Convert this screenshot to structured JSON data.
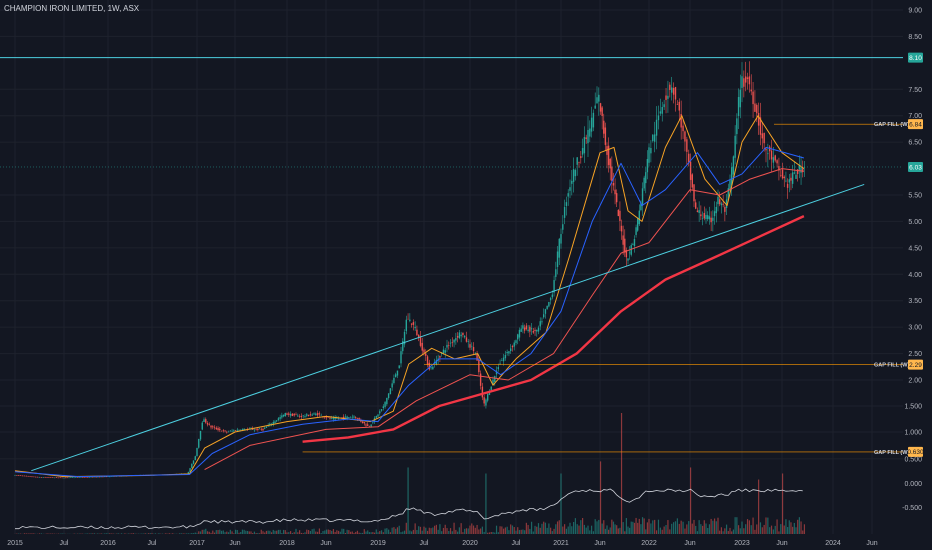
{
  "header": {
    "symbol_title": "CHAMPION IRON LIMITED, 1W, ASX"
  },
  "colors": {
    "background": "#131722",
    "grid": "#1e222d",
    "candle_up": "#26a69a",
    "candle_down": "#ef5350",
    "ma_fast": "#f7a325",
    "ma_mid": "#2962ff",
    "ma_slow_thin": "#ef5350",
    "ma_slow_thick": "#f23645",
    "trendline": "#4dd0e1",
    "gap_line": "#ff9800",
    "price_badge": "#26a69a",
    "gap_badge": "#ffb74d",
    "volume_line": "#d1d4dc"
  },
  "chart_data": {
    "type": "candlestick",
    "title": "CHAMPION IRON LIMITED, 1W, ASX",
    "x_ticks": [
      "2015",
      "Jul",
      "2016",
      "Jul",
      "2017",
      "Jun",
      "2018",
      "Jun",
      "2019",
      "Jul",
      "2020",
      "Jul",
      "2021",
      "Jun",
      "2022",
      "Jun",
      "2023",
      "Jun",
      "2024",
      "Jun"
    ],
    "x_tick_dates": [
      "2015-01",
      "2015-07",
      "2016-01",
      "2016-07",
      "2017-01",
      "2017-06",
      "2018-01",
      "2018-06",
      "2019-01",
      "2019-07",
      "2020-01",
      "2020-07",
      "2021-01",
      "2021-06",
      "2022-01",
      "2022-06",
      "2023-01",
      "2023-06",
      "2024-01",
      "2024-06"
    ],
    "y_ticks": [
      "9.00",
      "8.50",
      "7.50",
      "7.00",
      "6.50",
      "5.50",
      "5.00",
      "4.50",
      "4.00",
      "3.50",
      "3.00",
      "2.50",
      "2.00",
      "1.500",
      "1.000",
      "0.500"
    ],
    "y_tick_values": [
      9.0,
      8.5,
      7.5,
      7.0,
      6.5,
      5.5,
      5.0,
      4.5,
      4.0,
      3.5,
      3.0,
      2.5,
      2.0,
      1.5,
      1.0,
      0.5
    ],
    "y_axis_anchor_values": [
      0.2,
      1.0,
      2.0,
      9.0
    ],
    "x_domain": [
      "2015-01",
      "2024-09"
    ],
    "price_path": [
      [
        "2015-01",
        0.2
      ],
      [
        "2015-04",
        0.16
      ],
      [
        "2015-07",
        0.15
      ],
      [
        "2015-10",
        0.16
      ],
      [
        "2016-01",
        0.17
      ],
      [
        "2016-04",
        0.19
      ],
      [
        "2016-07",
        0.2
      ],
      [
        "2016-10",
        0.21
      ],
      [
        "2016-12",
        0.23
      ],
      [
        "2017-01",
        0.55
      ],
      [
        "2017-02",
        1.25
      ],
      [
        "2017-03",
        1.1
      ],
      [
        "2017-05",
        1.0
      ],
      [
        "2017-07",
        1.05
      ],
      [
        "2017-10",
        1.05
      ],
      [
        "2018-01",
        1.35
      ],
      [
        "2018-03",
        1.3
      ],
      [
        "2018-05",
        1.35
      ],
      [
        "2018-07",
        1.25
      ],
      [
        "2018-10",
        1.3
      ],
      [
        "2018-12",
        1.1
      ],
      [
        "2019-02",
        1.5
      ],
      [
        "2019-04",
        2.3
      ],
      [
        "2019-05",
        3.2
      ],
      [
        "2019-06",
        3.0
      ],
      [
        "2019-07",
        2.6
      ],
      [
        "2019-08",
        2.2
      ],
      [
        "2019-10",
        2.6
      ],
      [
        "2019-12",
        2.9
      ],
      [
        "2020-02",
        2.5
      ],
      [
        "2020-03",
        1.5
      ],
      [
        "2020-05",
        2.3
      ],
      [
        "2020-07",
        2.7
      ],
      [
        "2020-08",
        3.0
      ],
      [
        "2020-10",
        2.9
      ],
      [
        "2020-12",
        3.6
      ],
      [
        "2021-01",
        4.6
      ],
      [
        "2021-02",
        5.5
      ],
      [
        "2021-03",
        6.0
      ],
      [
        "2021-05",
        6.8
      ],
      [
        "2021-06",
        7.4
      ],
      [
        "2021-07",
        6.5
      ],
      [
        "2021-09",
        5.0
      ],
      [
        "2021-10",
        4.3
      ],
      [
        "2021-11",
        4.6
      ],
      [
        "2021-12",
        5.3
      ],
      [
        "2022-01",
        6.2
      ],
      [
        "2022-03",
        7.3
      ],
      [
        "2022-04",
        7.6
      ],
      [
        "2022-05",
        7.0
      ],
      [
        "2022-07",
        5.2
      ],
      [
        "2022-09",
        5.0
      ],
      [
        "2022-10",
        5.4
      ],
      [
        "2022-11",
        5.2
      ],
      [
        "2022-12",
        6.1
      ],
      [
        "2023-01",
        7.6
      ],
      [
        "2023-02",
        7.7
      ],
      [
        "2023-03",
        7.1
      ],
      [
        "2023-04",
        6.4
      ],
      [
        "2023-05",
        6.2
      ],
      [
        "2023-06",
        5.9
      ],
      [
        "2023-07",
        5.7
      ],
      [
        "2023-08",
        5.9
      ],
      [
        "2023-09",
        6.03
      ]
    ],
    "moving_averages": [
      {
        "color_key": "ma_fast",
        "points": [
          [
            "2015-01",
            0.28
          ],
          [
            "2015-07",
            0.17
          ],
          [
            "2016-06",
            0.19
          ],
          [
            "2016-12",
            0.22
          ],
          [
            "2017-02",
            0.7
          ],
          [
            "2017-06",
            1.0
          ],
          [
            "2018-01",
            1.2
          ],
          [
            "2018-06",
            1.3
          ],
          [
            "2018-12",
            1.2
          ],
          [
            "2019-03",
            1.4
          ],
          [
            "2019-05",
            2.3
          ],
          [
            "2019-08",
            2.6
          ],
          [
            "2019-11",
            2.4
          ],
          [
            "2020-02",
            2.5
          ],
          [
            "2020-04",
            1.9
          ],
          [
            "2020-07",
            2.4
          ],
          [
            "2020-11",
            2.9
          ],
          [
            "2021-02",
            4.3
          ],
          [
            "2021-06",
            6.3
          ],
          [
            "2021-08",
            6.4
          ],
          [
            "2021-10",
            5.2
          ],
          [
            "2021-12",
            5.0
          ],
          [
            "2022-03",
            6.4
          ],
          [
            "2022-05",
            7.0
          ],
          [
            "2022-08",
            5.8
          ],
          [
            "2022-11",
            5.3
          ],
          [
            "2023-01",
            6.5
          ],
          [
            "2023-03",
            7.0
          ],
          [
            "2023-06",
            6.3
          ],
          [
            "2023-09",
            6.0
          ]
        ]
      },
      {
        "color_key": "ma_mid",
        "points": [
          [
            "2015-01",
            0.26
          ],
          [
            "2015-09",
            0.17
          ],
          [
            "2016-12",
            0.21
          ],
          [
            "2017-03",
            0.6
          ],
          [
            "2017-08",
            0.95
          ],
          [
            "2018-03",
            1.15
          ],
          [
            "2018-09",
            1.25
          ],
          [
            "2019-01",
            1.2
          ],
          [
            "2019-05",
            1.9
          ],
          [
            "2019-09",
            2.4
          ],
          [
            "2020-02",
            2.4
          ],
          [
            "2020-05",
            2.1
          ],
          [
            "2020-09",
            2.5
          ],
          [
            "2021-01",
            3.3
          ],
          [
            "2021-05",
            5.0
          ],
          [
            "2021-09",
            6.1
          ],
          [
            "2021-12",
            5.3
          ],
          [
            "2022-03",
            5.6
          ],
          [
            "2022-07",
            6.3
          ],
          [
            "2022-10",
            5.7
          ],
          [
            "2023-01",
            5.9
          ],
          [
            "2023-04",
            6.4
          ],
          [
            "2023-09",
            6.2
          ]
        ]
      },
      {
        "color_key": "ma_slow_thin",
        "points": [
          [
            "2017-02",
            0.3
          ],
          [
            "2017-08",
            0.75
          ],
          [
            "2018-06",
            1.05
          ],
          [
            "2019-01",
            1.1
          ],
          [
            "2019-06",
            1.6
          ],
          [
            "2020-01",
            2.1
          ],
          [
            "2020-06",
            2.0
          ],
          [
            "2020-12",
            2.5
          ],
          [
            "2021-05",
            3.6
          ],
          [
            "2021-09",
            4.4
          ],
          [
            "2022-01",
            4.6
          ],
          [
            "2022-06",
            5.6
          ],
          [
            "2022-10",
            5.5
          ],
          [
            "2023-02",
            5.8
          ],
          [
            "2023-06",
            6.0
          ],
          [
            "2023-09",
            5.95
          ]
        ]
      },
      {
        "color_key": "ma_slow_thick",
        "points": [
          [
            "2018-03",
            0.82
          ],
          [
            "2018-09",
            0.9
          ],
          [
            "2019-03",
            1.05
          ],
          [
            "2019-09",
            1.5
          ],
          [
            "2020-03",
            1.75
          ],
          [
            "2020-09",
            2.0
          ],
          [
            "2021-03",
            2.5
          ],
          [
            "2021-09",
            3.3
          ],
          [
            "2022-03",
            3.9
          ],
          [
            "2022-09",
            4.3
          ],
          [
            "2023-03",
            4.7
          ],
          [
            "2023-09",
            5.1
          ]
        ]
      }
    ],
    "trendlines": [
      {
        "from": [
          "2015-03",
          0.28
        ],
        "to": [
          "2024-05",
          5.7
        ]
      },
      {
        "horizontal_value": 8.1,
        "span": "full"
      }
    ],
    "annotations": [
      {
        "label": "GAP FILL (W)",
        "value": "6.84",
        "level": 6.84,
        "from": "2023-05"
      },
      {
        "label": "GAP FILL (W)",
        "value": "2.29",
        "level": 2.29,
        "from": "2019-07"
      },
      {
        "label": "GAP FILL (W)",
        "value": "0.630",
        "level": 0.63,
        "from": "2018-03"
      }
    ],
    "price_badges": [
      {
        "value": "8.10",
        "level": 8.1
      },
      {
        "value": "6.03",
        "level": 6.03
      }
    ],
    "volume_axis_ticks": [
      "0.000",
      "-0.500"
    ],
    "volume_spikes": [
      [
        "2019-05",
        0.55
      ],
      [
        "2020-03",
        0.5
      ],
      [
        "2021-01",
        0.5
      ],
      [
        "2021-06",
        0.6
      ],
      [
        "2021-09",
        1.0
      ],
      [
        "2022-06",
        0.55
      ],
      [
        "2023-03",
        0.45
      ],
      [
        "2023-06",
        0.5
      ]
    ]
  }
}
